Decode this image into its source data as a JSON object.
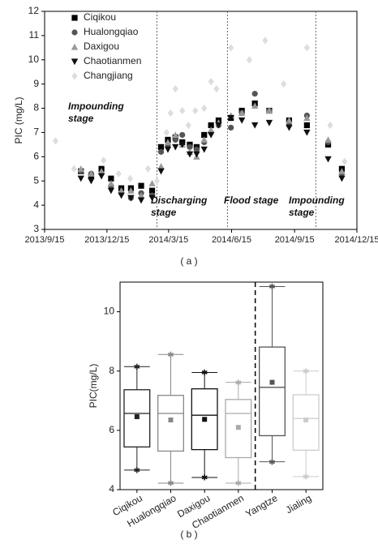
{
  "chart_data": [
    {
      "type": "scatter",
      "ylabel": "PIC (mg/L)",
      "caption": "( a )",
      "xlim": [
        "2013/9/15",
        "2014/12/15"
      ],
      "xticks": [
        "2013/9/15",
        "2013/12/15",
        "2014/3/15",
        "2014/6/15",
        "2014/9/15",
        "2014/12/15"
      ],
      "ylim": [
        3,
        12
      ],
      "yticks": [
        3,
        4,
        5,
        6,
        7,
        8,
        9,
        10,
        11,
        12
      ],
      "legend": "top-left",
      "vlines": [
        "2014/2/26",
        "2014/6/9",
        "2014/10/16"
      ],
      "annotations": [
        "Impounding stage",
        "Discharging stage",
        "Flood stage",
        "Impounding stage"
      ],
      "series": [
        {
          "name": "Ciqikou",
          "color": "#000000",
          "marker": "square",
          "x": [
            "2013/11/7",
            "2013/11/22",
            "2013/12/7",
            "2013/12/21",
            "2014/1/5",
            "2014/1/19",
            "2014/2/3",
            "2014/2/19",
            "2014/3/4",
            "2014/3/14",
            "2014/3/25",
            "2014/4/4",
            "2014/4/15",
            "2014/4/25",
            "2014/5/6",
            "2014/5/16",
            "2014/5/27",
            "2014/6/14",
            "2014/6/30",
            "2014/7/19",
            "2014/8/9",
            "2014/9/7",
            "2014/10/3",
            "2014/11/3",
            "2014/11/23"
          ],
          "values": [
            5.4,
            5.2,
            5.5,
            5.1,
            4.7,
            4.7,
            4.8,
            4.6,
            6.4,
            6.7,
            6.8,
            6.6,
            6.5,
            6.4,
            6.9,
            7.3,
            7.5,
            7.6,
            7.9,
            8.2,
            7.9,
            7.5,
            7.3,
            6.5,
            5.5
          ]
        },
        {
          "name": "Hualongqiao",
          "color": "#555555",
          "marker": "circle",
          "x": [
            "2013/11/7",
            "2013/11/22",
            "2013/12/7",
            "2013/12/21",
            "2014/1/5",
            "2014/1/19",
            "2014/2/3",
            "2014/2/19",
            "2014/3/4",
            "2014/3/14",
            "2014/3/25",
            "2014/4/4",
            "2014/4/15",
            "2014/4/25",
            "2014/5/6",
            "2014/5/16",
            "2014/5/27",
            "2014/6/14",
            "2014/6/30",
            "2014/7/19",
            "2014/8/9",
            "2014/9/7",
            "2014/10/3",
            "2014/11/3",
            "2014/11/23"
          ],
          "values": [
            5.4,
            5.3,
            5.3,
            4.8,
            4.5,
            4.3,
            4.5,
            4.4,
            6.2,
            6.5,
            6.7,
            6.9,
            6.4,
            6.3,
            6.6,
            7.0,
            7.3,
            7.2,
            7.8,
            8.6,
            7.9,
            7.3,
            7.7,
            6.6,
            5.3
          ]
        },
        {
          "name": "Daxigou",
          "color": "#999999",
          "marker": "triangle-up",
          "x": [
            "2013/11/7",
            "2013/11/22",
            "2013/12/7",
            "2013/12/21",
            "2014/1/5",
            "2014/1/19",
            "2014/2/3",
            "2014/2/19",
            "2014/3/4",
            "2014/3/14",
            "2014/3/25",
            "2014/4/4",
            "2014/4/15",
            "2014/4/25",
            "2014/5/6",
            "2014/5/16",
            "2014/5/27",
            "2014/6/14",
            "2014/6/30",
            "2014/7/19",
            "2014/8/9",
            "2014/9/7",
            "2014/10/3",
            "2014/11/3",
            "2014/11/23"
          ],
          "values": [
            5.5,
            5.3,
            5.4,
            4.9,
            4.6,
            4.6,
            4.4,
            4.9,
            5.6,
            6.6,
            6.9,
            6.5,
            6.2,
            6.0,
            6.7,
            7.1,
            7.4,
            7.7,
            7.8,
            8.1,
            7.9,
            7.5,
            7.6,
            6.7,
            5.4
          ]
        },
        {
          "name": "Chaotianmen",
          "color": "#111111",
          "marker": "triangle-down",
          "x": [
            "2013/11/7",
            "2013/11/22",
            "2013/12/7",
            "2013/12/21",
            "2014/1/5",
            "2014/1/19",
            "2014/2/3",
            "2014/2/19",
            "2014/3/4",
            "2014/3/14",
            "2014/3/25",
            "2014/4/4",
            "2014/4/15",
            "2014/4/25",
            "2014/5/6",
            "2014/5/16",
            "2014/5/27",
            "2014/6/14",
            "2014/6/30",
            "2014/7/19",
            "2014/8/9",
            "2014/9/7",
            "2014/10/3",
            "2014/11/3",
            "2014/11/23"
          ],
          "values": [
            5.1,
            5.0,
            5.2,
            4.6,
            4.4,
            4.3,
            4.2,
            4.3,
            5.4,
            6.3,
            6.4,
            6.5,
            6.1,
            6.1,
            6.3,
            6.9,
            7.3,
            7.6,
            7.5,
            7.3,
            7.4,
            7.2,
            7.0,
            5.9,
            5.1
          ]
        },
        {
          "name": "Changjiang",
          "color": "#dddddd",
          "marker": "diamond",
          "x": [
            "2013/10/1",
            "2013/10/28",
            "2013/12/10",
            "2014/1/1",
            "2014/1/18",
            "2014/2/13",
            "2014/2/26",
            "2014/3/12",
            "2014/3/18",
            "2014/3/25",
            "2014/4/4",
            "2014/4/13",
            "2014/4/23",
            "2014/5/6",
            "2014/5/16",
            "2014/5/24",
            "2014/6/14",
            "2014/7/11",
            "2014/8/3",
            "2014/8/30",
            "2014/10/3",
            "2014/11/6",
            "2014/11/27"
          ],
          "values": [
            6.65,
            5.5,
            5.85,
            5.3,
            5.1,
            5.5,
            5.0,
            7.0,
            7.8,
            8.8,
            7.9,
            7.3,
            7.9,
            8.0,
            9.1,
            8.8,
            10.5,
            10.0,
            10.8,
            9.0,
            10.5,
            7.3,
            5.8
          ]
        }
      ]
    },
    {
      "type": "box",
      "ylabel": "PIC(mg/L)",
      "caption": "( b )",
      "categories": [
        "Ciqikou",
        "Hualongqiao",
        "Daxigou",
        "Chaotianmen",
        "Yangtze",
        "Jialing"
      ],
      "colors": [
        "#222222",
        "#888888",
        "#111111",
        "#aaaaaa",
        "#555555",
        "#cccccc"
      ],
      "ylim": [
        4,
        11
      ],
      "yticks": [
        4,
        6,
        8,
        10
      ],
      "min": [
        4.66,
        4.22,
        4.41,
        4.22,
        4.94,
        4.44
      ],
      "q1": [
        5.44,
        5.3,
        5.35,
        5.08,
        5.82,
        5.33
      ],
      "median": [
        6.57,
        6.57,
        6.51,
        6.57,
        7.45,
        6.4
      ],
      "q3": [
        7.37,
        7.18,
        7.4,
        7.04,
        8.81,
        7.2
      ],
      "max": [
        8.15,
        8.56,
        7.95,
        7.62,
        10.85,
        8.0
      ],
      "mean": [
        6.46,
        6.35,
        6.37,
        6.1,
        7.62,
        6.35
      ]
    }
  ]
}
